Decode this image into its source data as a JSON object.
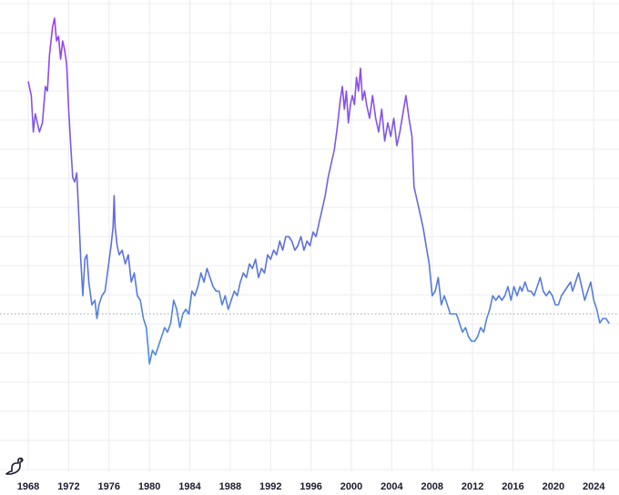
{
  "chart_data": {
    "type": "line",
    "title": "",
    "xlabel": "",
    "ylabel": "",
    "x_ticks": [
      "1968",
      "1972",
      "1976",
      "1980",
      "1984",
      "1988",
      "1992",
      "1996",
      "2000",
      "2004",
      "2008",
      "2012",
      "2016",
      "2020",
      "2024"
    ],
    "xlim": [
      1965.2,
      2026.5
    ],
    "ylim": [
      0,
      100
    ],
    "reference_line": 33.0,
    "grid": true,
    "gradient_colors": {
      "high": "#a23cf0",
      "mid": "#5d6ee0",
      "low": "#3fa2dc"
    },
    "series": [
      {
        "points": [
          [
            1968.0,
            84
          ],
          [
            1968.3,
            81
          ],
          [
            1968.5,
            73
          ],
          [
            1968.7,
            77
          ],
          [
            1968.9,
            75
          ],
          [
            1969.1,
            73
          ],
          [
            1969.4,
            75
          ],
          [
            1969.7,
            83
          ],
          [
            1969.9,
            82
          ],
          [
            1970.1,
            90
          ],
          [
            1970.4,
            96
          ],
          [
            1970.6,
            98
          ],
          [
            1970.8,
            93
          ],
          [
            1971.0,
            94
          ],
          [
            1971.2,
            89
          ],
          [
            1971.4,
            93
          ],
          [
            1971.6,
            91
          ],
          [
            1971.8,
            88
          ],
          [
            1972.0,
            78
          ],
          [
            1972.2,
            70
          ],
          [
            1972.4,
            63
          ],
          [
            1972.6,
            62
          ],
          [
            1972.8,
            64
          ],
          [
            1973.0,
            55
          ],
          [
            1973.2,
            45
          ],
          [
            1973.4,
            37
          ],
          [
            1973.6,
            45
          ],
          [
            1973.8,
            46
          ],
          [
            1974.0,
            40
          ],
          [
            1974.3,
            35
          ],
          [
            1974.6,
            36
          ],
          [
            1974.8,
            32
          ],
          [
            1975.0,
            35
          ],
          [
            1975.3,
            37
          ],
          [
            1975.6,
            38
          ],
          [
            1975.9,
            43
          ],
          [
            1976.2,
            48
          ],
          [
            1976.4,
            52
          ],
          [
            1976.5,
            59
          ],
          [
            1976.6,
            52
          ],
          [
            1976.8,
            48
          ],
          [
            1977.0,
            46
          ],
          [
            1977.3,
            47
          ],
          [
            1977.6,
            44
          ],
          [
            1977.9,
            46
          ],
          [
            1978.2,
            40
          ],
          [
            1978.5,
            42
          ],
          [
            1978.8,
            37
          ],
          [
            1979.1,
            36
          ],
          [
            1979.4,
            32
          ],
          [
            1979.7,
            30
          ],
          [
            1980.0,
            22
          ],
          [
            1980.3,
            25
          ],
          [
            1980.6,
            24
          ],
          [
            1980.9,
            26
          ],
          [
            1981.2,
            28
          ],
          [
            1981.5,
            30
          ],
          [
            1981.8,
            29
          ],
          [
            1982.1,
            31
          ],
          [
            1982.4,
            36
          ],
          [
            1982.7,
            34
          ],
          [
            1983.0,
            30
          ],
          [
            1983.3,
            33
          ],
          [
            1983.6,
            34
          ],
          [
            1983.9,
            33
          ],
          [
            1984.2,
            38
          ],
          [
            1984.5,
            37
          ],
          [
            1984.8,
            39
          ],
          [
            1985.1,
            42
          ],
          [
            1985.4,
            40
          ],
          [
            1985.7,
            43
          ],
          [
            1986.0,
            41
          ],
          [
            1986.3,
            39
          ],
          [
            1986.6,
            38
          ],
          [
            1986.9,
            38
          ],
          [
            1987.2,
            35
          ],
          [
            1987.5,
            37
          ],
          [
            1987.8,
            34
          ],
          [
            1988.1,
            36
          ],
          [
            1988.4,
            38
          ],
          [
            1988.7,
            37
          ],
          [
            1989.0,
            40
          ],
          [
            1989.3,
            42
          ],
          [
            1989.6,
            41
          ],
          [
            1989.9,
            44
          ],
          [
            1990.2,
            43
          ],
          [
            1990.5,
            45
          ],
          [
            1990.8,
            41
          ],
          [
            1991.1,
            43
          ],
          [
            1991.4,
            42
          ],
          [
            1991.7,
            46
          ],
          [
            1992.0,
            45
          ],
          [
            1992.3,
            47
          ],
          [
            1992.6,
            46
          ],
          [
            1992.9,
            49
          ],
          [
            1993.2,
            47
          ],
          [
            1993.5,
            50
          ],
          [
            1993.8,
            50
          ],
          [
            1994.1,
            49
          ],
          [
            1994.4,
            47
          ],
          [
            1994.7,
            48
          ],
          [
            1995.0,
            50
          ],
          [
            1995.3,
            47
          ],
          [
            1995.6,
            49
          ],
          [
            1995.9,
            48
          ],
          [
            1996.2,
            51
          ],
          [
            1996.5,
            50
          ],
          [
            1996.8,
            53
          ],
          [
            1997.1,
            56
          ],
          [
            1997.4,
            59
          ],
          [
            1997.7,
            63
          ],
          [
            1998.0,
            66
          ],
          [
            1998.3,
            69
          ],
          [
            1998.6,
            74
          ],
          [
            1998.9,
            80
          ],
          [
            1999.1,
            83
          ],
          [
            1999.3,
            78
          ],
          [
            1999.5,
            82
          ],
          [
            1999.7,
            75
          ],
          [
            1999.9,
            79
          ],
          [
            2000.1,
            81
          ],
          [
            2000.3,
            79
          ],
          [
            2000.5,
            85
          ],
          [
            2000.7,
            82
          ],
          [
            2000.9,
            87
          ],
          [
            2001.1,
            80
          ],
          [
            2001.3,
            82
          ],
          [
            2001.5,
            79
          ],
          [
            2001.8,
            76
          ],
          [
            2002.1,
            81
          ],
          [
            2002.4,
            76
          ],
          [
            2002.7,
            73
          ],
          [
            2003.0,
            78
          ],
          [
            2003.3,
            71
          ],
          [
            2003.6,
            75
          ],
          [
            2003.9,
            72
          ],
          [
            2004.2,
            76
          ],
          [
            2004.5,
            70
          ],
          [
            2004.8,
            73
          ],
          [
            2005.1,
            77
          ],
          [
            2005.4,
            81
          ],
          [
            2005.7,
            76
          ],
          [
            2006.0,
            72
          ],
          [
            2006.2,
            61
          ],
          [
            2006.5,
            58
          ],
          [
            2006.8,
            55
          ],
          [
            2007.1,
            52
          ],
          [
            2007.4,
            48
          ],
          [
            2007.7,
            44
          ],
          [
            2008.0,
            37
          ],
          [
            2008.3,
            38
          ],
          [
            2008.6,
            41
          ],
          [
            2008.9,
            35
          ],
          [
            2009.2,
            37
          ],
          [
            2009.5,
            35
          ],
          [
            2009.8,
            33
          ],
          [
            2010.1,
            33
          ],
          [
            2010.4,
            33
          ],
          [
            2010.7,
            31
          ],
          [
            2011.0,
            29
          ],
          [
            2011.3,
            30
          ],
          [
            2011.6,
            28
          ],
          [
            2011.9,
            27
          ],
          [
            2012.2,
            27
          ],
          [
            2012.5,
            28
          ],
          [
            2012.8,
            30
          ],
          [
            2013.1,
            29
          ],
          [
            2013.4,
            32
          ],
          [
            2013.7,
            34
          ],
          [
            2014.0,
            37
          ],
          [
            2014.3,
            36
          ],
          [
            2014.6,
            37
          ],
          [
            2014.9,
            36
          ],
          [
            2015.2,
            37
          ],
          [
            2015.5,
            39
          ],
          [
            2015.8,
            36
          ],
          [
            2016.1,
            39
          ],
          [
            2016.4,
            37
          ],
          [
            2016.7,
            39
          ],
          [
            2016.9,
            38
          ],
          [
            2017.2,
            40
          ],
          [
            2017.5,
            38
          ],
          [
            2017.8,
            38
          ],
          [
            2018.1,
            37
          ],
          [
            2018.4,
            39
          ],
          [
            2018.7,
            41
          ],
          [
            2019.0,
            38
          ],
          [
            2019.3,
            37
          ],
          [
            2019.6,
            38
          ],
          [
            2019.9,
            37
          ],
          [
            2020.2,
            35
          ],
          [
            2020.5,
            35
          ],
          [
            2020.8,
            37
          ],
          [
            2021.1,
            38
          ],
          [
            2021.4,
            39
          ],
          [
            2021.7,
            40
          ],
          [
            2021.9,
            38
          ],
          [
            2022.2,
            40
          ],
          [
            2022.5,
            42
          ],
          [
            2022.8,
            39
          ],
          [
            2023.1,
            36
          ],
          [
            2023.4,
            38
          ],
          [
            2023.7,
            40
          ],
          [
            2024.0,
            36
          ],
          [
            2024.3,
            34
          ],
          [
            2024.6,
            31
          ],
          [
            2024.9,
            32
          ],
          [
            2025.2,
            32
          ],
          [
            2025.5,
            31
          ]
        ]
      }
    ]
  }
}
